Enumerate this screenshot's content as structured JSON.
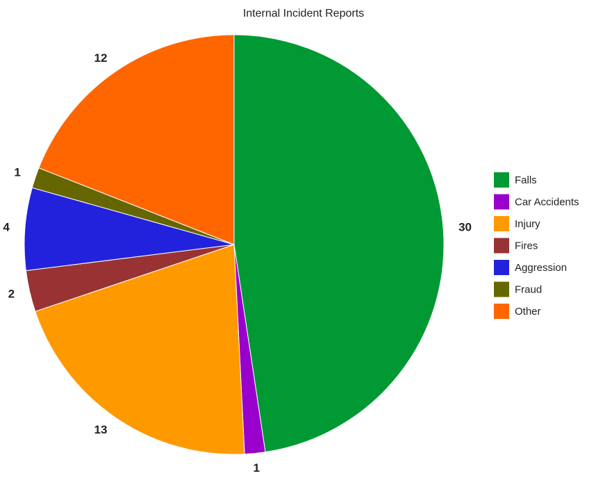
{
  "chart_data": {
    "type": "pie",
    "title": "Internal Incident Reports",
    "categories": [
      "Falls",
      "Car Accidents",
      "Injury",
      "Fires",
      "Aggression",
      "Fraud",
      "Other"
    ],
    "values": [
      30,
      1,
      13,
      2,
      4,
      1,
      12
    ],
    "colors": [
      "#009933",
      "#9900cc",
      "#ff9900",
      "#993333",
      "#2222dd",
      "#666600",
      "#ff6600"
    ],
    "start_angle_deg": 0,
    "direction": "clockwise",
    "legend_position": "right",
    "data_labels": "values, outside"
  }
}
